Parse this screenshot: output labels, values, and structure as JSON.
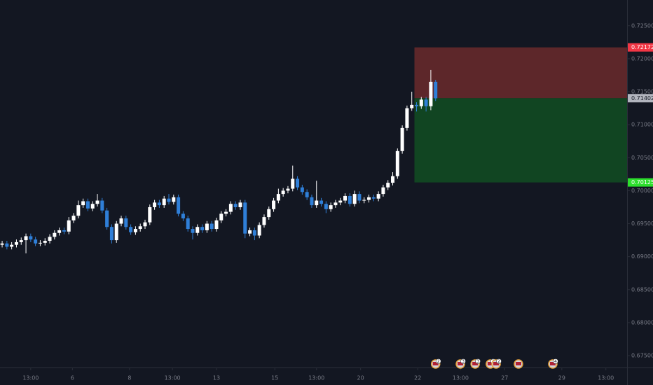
{
  "chart_data": {
    "type": "candlestick",
    "up_color": "#ffffff",
    "down_color": "#2f7fd8",
    "grid": false,
    "xlim": [
      -0.45,
      131.2
    ],
    "ylim": [
      0.6732,
      0.7289
    ],
    "yticks": [
      {
        "value": 0.675,
        "label": "0.67500"
      },
      {
        "value": 0.68,
        "label": "0.68000"
      },
      {
        "value": 0.685,
        "label": "0.68500"
      },
      {
        "value": 0.69,
        "label": "0.69000"
      },
      {
        "value": 0.695,
        "label": "0.69500"
      },
      {
        "value": 0.7,
        "label": "0.70000"
      },
      {
        "value": 0.705,
        "label": "0.70500"
      },
      {
        "value": 0.71,
        "label": "0.71000"
      },
      {
        "value": 0.715,
        "label": "0.71500"
      },
      {
        "value": 0.72,
        "label": "0.72000"
      },
      {
        "value": 0.725,
        "label": "0.72500"
      }
    ],
    "xticks": [
      {
        "value": 6,
        "label": "13:00"
      },
      {
        "value": 14.75,
        "label": "6"
      },
      {
        "value": 26.75,
        "label": "8"
      },
      {
        "value": 35.75,
        "label": "13:00"
      },
      {
        "value": 45,
        "label": "13"
      },
      {
        "value": 57.25,
        "label": "15"
      },
      {
        "value": 66,
        "label": "13:00"
      },
      {
        "value": 75.25,
        "label": "20"
      },
      {
        "value": 87.25,
        "label": "22"
      },
      {
        "value": 96.25,
        "label": "13:00"
      },
      {
        "value": 105.5,
        "label": "27"
      },
      {
        "value": 117.5,
        "label": "29"
      },
      {
        "value": 126.75,
        "label": "13:00"
      }
    ],
    "open": [
      0.6918,
      0.692,
      0.6915,
      0.6918,
      0.6922,
      0.6925,
      0.6931,
      0.6926,
      0.692,
      0.6921,
      0.6924,
      0.693,
      0.6936,
      0.694,
      0.6938,
      0.6955,
      0.6962,
      0.6978,
      0.6984,
      0.6973,
      0.698,
      0.6985,
      0.697,
      0.6945,
      0.6925,
      0.695,
      0.6958,
      0.6945,
      0.6937,
      0.6942,
      0.6946,
      0.6952,
      0.6975,
      0.6982,
      0.6978,
      0.6988,
      0.6983,
      0.699,
      0.6965,
      0.6958,
      0.6942,
      0.6936,
      0.6945,
      0.694,
      0.695,
      0.6942,
      0.6955,
      0.6965,
      0.6968,
      0.698,
      0.6975,
      0.6982,
      0.6935,
      0.694,
      0.6932,
      0.6948,
      0.696,
      0.6972,
      0.6985,
      0.6995,
      0.7,
      0.7003,
      0.7018,
      0.7005,
      0.6998,
      0.699,
      0.6978,
      0.6985,
      0.698,
      0.6972,
      0.6978,
      0.6982,
      0.6985,
      0.6992,
      0.698,
      0.6995,
      0.6985,
      0.6986,
      0.699,
      0.6988,
      0.6995,
      0.7005,
      0.7012,
      0.7022,
      0.706,
      0.7095,
      0.7125,
      0.713,
      0.7128,
      0.7138,
      0.7128,
      0.7165
    ],
    "close": [
      0.692,
      0.6915,
      0.6918,
      0.6922,
      0.6925,
      0.6931,
      0.6926,
      0.692,
      0.6921,
      0.6924,
      0.693,
      0.6936,
      0.694,
      0.6938,
      0.6955,
      0.6962,
      0.6978,
      0.6984,
      0.6973,
      0.698,
      0.6985,
      0.697,
      0.6945,
      0.6925,
      0.695,
      0.6958,
      0.6945,
      0.6937,
      0.6942,
      0.6946,
      0.6952,
      0.6975,
      0.6982,
      0.6978,
      0.6988,
      0.6983,
      0.699,
      0.6965,
      0.6958,
      0.6942,
      0.6936,
      0.6945,
      0.694,
      0.695,
      0.6942,
      0.6955,
      0.6965,
      0.6968,
      0.698,
      0.6975,
      0.6982,
      0.6935,
      0.694,
      0.6932,
      0.6948,
      0.696,
      0.6972,
      0.6985,
      0.6995,
      0.7,
      0.7003,
      0.7018,
      0.7005,
      0.6998,
      0.699,
      0.6978,
      0.6985,
      0.698,
      0.6972,
      0.6978,
      0.6982,
      0.6985,
      0.6992,
      0.698,
      0.6995,
      0.6985,
      0.6986,
      0.699,
      0.6988,
      0.6995,
      0.7005,
      0.7012,
      0.7022,
      0.706,
      0.7095,
      0.7125,
      0.713,
      0.7128,
      0.7138,
      0.7128,
      0.7165,
      0.714
    ],
    "high": [
      0.6924,
      0.6924,
      0.6922,
      0.6926,
      0.6929,
      0.6935,
      0.6935,
      0.693,
      0.6925,
      0.6928,
      0.6934,
      0.694,
      0.6944,
      0.6944,
      0.696,
      0.6966,
      0.6985,
      0.6988,
      0.6988,
      0.6984,
      0.6995,
      0.6989,
      0.6974,
      0.6949,
      0.6954,
      0.6962,
      0.6962,
      0.6949,
      0.6946,
      0.695,
      0.6956,
      0.6979,
      0.6986,
      0.6986,
      0.6992,
      0.6995,
      0.6994,
      0.6994,
      0.6969,
      0.6962,
      0.6946,
      0.6949,
      0.6949,
      0.6954,
      0.6954,
      0.6959,
      0.6969,
      0.6972,
      0.6984,
      0.6984,
      0.6986,
      0.6986,
      0.6944,
      0.6944,
      0.6952,
      0.6964,
      0.6976,
      0.6989,
      0.7003,
      0.7004,
      0.7007,
      0.7038,
      0.7022,
      0.7009,
      0.7002,
      0.6994,
      0.7015,
      0.6989,
      0.6984,
      0.6982,
      0.6986,
      0.6989,
      0.6996,
      0.6996,
      0.7,
      0.6999,
      0.699,
      0.6994,
      0.6994,
      0.6999,
      0.7009,
      0.7016,
      0.7028,
      0.7064,
      0.7099,
      0.7129,
      0.715,
      0.7134,
      0.7142,
      0.7142,
      0.7183,
      0.7168
    ],
    "low": [
      0.6914,
      0.6911,
      0.6911,
      0.6914,
      0.6918,
      0.6905,
      0.6922,
      0.6916,
      0.6916,
      0.6917,
      0.692,
      0.6926,
      0.6932,
      0.6934,
      0.6934,
      0.6951,
      0.6958,
      0.6974,
      0.6969,
      0.6969,
      0.6976,
      0.6966,
      0.6941,
      0.692,
      0.6921,
      0.6946,
      0.6941,
      0.6933,
      0.6933,
      0.6938,
      0.6942,
      0.6948,
      0.6971,
      0.6974,
      0.6974,
      0.6979,
      0.6979,
      0.6961,
      0.6954,
      0.6938,
      0.6926,
      0.6932,
      0.6936,
      0.6936,
      0.6938,
      0.6938,
      0.6951,
      0.6961,
      0.6964,
      0.6971,
      0.6971,
      0.6928,
      0.6931,
      0.6925,
      0.6928,
      0.6944,
      0.6956,
      0.6968,
      0.6981,
      0.6991,
      0.6996,
      0.6999,
      0.7001,
      0.6994,
      0.6986,
      0.6974,
      0.6974,
      0.6976,
      0.6966,
      0.6968,
      0.6974,
      0.6978,
      0.6981,
      0.6976,
      0.6976,
      0.6981,
      0.6981,
      0.6982,
      0.6984,
      0.6984,
      0.6991,
      0.7001,
      0.7008,
      0.7018,
      0.7056,
      0.7091,
      0.7121,
      0.712,
      0.7124,
      0.712,
      0.7122,
      0.7136
    ],
    "price_labels": [
      {
        "value": 0.72172,
        "label": "0.72172",
        "color": "#f23645"
      },
      {
        "value": 0.71402,
        "label": "0.71402",
        "color": "#b2b5be"
      },
      {
        "value": 0.70125,
        "label": "0.70125",
        "color": "#2ddf2d"
      }
    ],
    "zones": [
      {
        "start": 87,
        "color": "#6b2a2c"
      },
      {
        "start": 87,
        "color": "#124d22"
      }
    ],
    "events": [
      {
        "x": 91,
        "label": "2"
      },
      {
        "x": 96.2,
        "label": "3"
      },
      {
        "x": 99.3,
        "label": "3"
      },
      {
        "x": 102.5,
        "label": "2"
      },
      {
        "x": 103.7,
        "label": "2"
      },
      {
        "x": 108.4
      },
      {
        "x": 115.6,
        "label": "4"
      }
    ]
  }
}
